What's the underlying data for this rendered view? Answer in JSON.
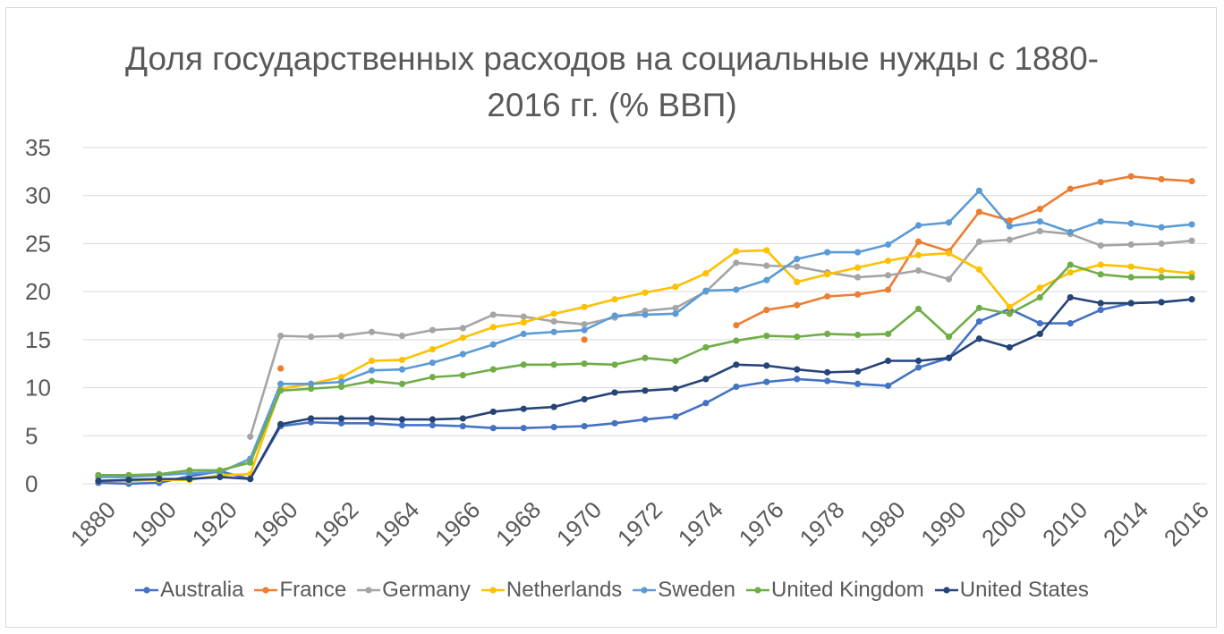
{
  "chart_data": {
    "type": "line",
    "title": "Доля государственных расходов на социальные нужды с 1880-2016 гг. (% ВВП)",
    "categories": [
      "1880",
      null,
      "1900",
      null,
      "1920",
      null,
      "1960",
      null,
      "1962",
      null,
      "1964",
      null,
      "1966",
      null,
      "1968",
      null,
      "1970",
      null,
      "1972",
      null,
      "1974",
      null,
      "1976",
      null,
      "1978",
      null,
      "1980",
      null,
      "1990",
      null,
      "2000",
      null,
      "2010",
      null,
      "2014",
      null,
      "2016"
    ],
    "ylim": [
      0,
      35
    ],
    "yticks": [
      0,
      5,
      10,
      15,
      20,
      25,
      30,
      35
    ],
    "grid": true,
    "legend": "bottom",
    "series": [
      {
        "name": "Australia",
        "color": "#4472c4",
        "values": [
          0.1,
          0.0,
          0.1,
          0.8,
          1.3,
          0.5,
          6.0,
          6.4,
          6.3,
          6.3,
          6.1,
          6.1,
          6.0,
          5.8,
          5.8,
          5.9,
          6.0,
          6.3,
          6.7,
          7.0,
          8.4,
          10.1,
          10.6,
          10.9,
          10.7,
          10.4,
          10.2,
          12.1,
          13.1,
          16.9,
          18.2,
          16.7,
          16.7,
          18.1,
          18.8,
          18.9,
          19.2
        ]
      },
      {
        "name": "France",
        "color": "#ed7d31",
        "values": [
          null,
          null,
          null,
          null,
          null,
          null,
          12.0,
          null,
          null,
          null,
          null,
          null,
          null,
          null,
          null,
          null,
          15.0,
          null,
          null,
          null,
          null,
          16.5,
          18.1,
          18.6,
          19.5,
          19.7,
          20.2,
          25.2,
          24.2,
          28.3,
          27.4,
          28.6,
          30.7,
          31.4,
          32.0,
          31.7,
          31.5
        ]
      },
      {
        "name": "Germany",
        "color": "#a5a5a5",
        "values": [
          null,
          null,
          null,
          null,
          null,
          4.9,
          15.4,
          15.3,
          15.4,
          15.8,
          15.4,
          16.0,
          16.2,
          17.6,
          17.4,
          16.9,
          16.6,
          17.3,
          18.0,
          18.3,
          20.0,
          23.0,
          22.7,
          22.6,
          22.0,
          21.5,
          21.7,
          22.2,
          21.3,
          25.2,
          25.4,
          26.3,
          26.0,
          24.8,
          24.9,
          25.0,
          25.3
        ]
      },
      {
        "name": "Netherlands",
        "color": "#ffc000",
        "values": [
          0.3,
          0.3,
          0.4,
          0.4,
          0.9,
          1.0,
          9.9,
          10.4,
          11.1,
          12.8,
          12.9,
          14.0,
          15.2,
          16.3,
          16.8,
          17.7,
          18.4,
          19.2,
          19.9,
          20.5,
          21.9,
          24.2,
          24.3,
          21.0,
          21.8,
          22.5,
          23.2,
          23.8,
          24.0,
          22.3,
          18.4,
          20.4,
          22.0,
          22.8,
          22.6,
          22.2,
          21.9
        ]
      },
      {
        "name": "Sweden",
        "color": "#5b9bd5",
        "values": [
          0.7,
          0.7,
          0.9,
          1.1,
          1.2,
          2.6,
          10.4,
          10.4,
          10.6,
          11.8,
          11.9,
          12.6,
          13.5,
          14.5,
          15.6,
          15.8,
          16.0,
          17.5,
          17.6,
          17.7,
          20.1,
          20.2,
          21.2,
          23.4,
          24.1,
          24.1,
          24.9,
          26.9,
          27.2,
          30.5,
          26.8,
          27.3,
          26.2,
          27.3,
          27.1,
          26.7,
          27.0
        ]
      },
      {
        "name": "United Kingdom",
        "color": "#70ad47",
        "values": [
          0.9,
          0.9,
          1.0,
          1.4,
          1.4,
          2.2,
          9.7,
          9.9,
          10.1,
          10.7,
          10.4,
          11.1,
          11.3,
          11.9,
          12.4,
          12.4,
          12.5,
          12.4,
          13.1,
          12.8,
          14.2,
          14.9,
          15.4,
          15.3,
          15.6,
          15.5,
          15.6,
          18.2,
          15.3,
          18.3,
          17.7,
          19.4,
          22.8,
          21.8,
          21.5,
          21.5,
          21.5
        ]
      },
      {
        "name": "United States",
        "color": "#264478",
        "values": [
          0.3,
          0.4,
          0.5,
          0.5,
          0.7,
          0.5,
          6.2,
          6.8,
          6.8,
          6.8,
          6.7,
          6.7,
          6.8,
          7.5,
          7.8,
          8.0,
          8.8,
          9.5,
          9.7,
          9.9,
          10.9,
          12.4,
          12.3,
          11.9,
          11.6,
          11.7,
          12.8,
          12.8,
          13.1,
          15.1,
          14.2,
          15.6,
          19.4,
          18.8,
          18.8,
          18.9,
          19.2
        ]
      }
    ]
  }
}
